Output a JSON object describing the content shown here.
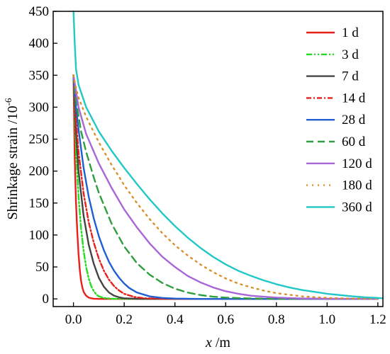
{
  "chart_data": {
    "type": "line",
    "title": "",
    "xlabel_var": "x",
    "xlabel_unit": " /m",
    "ylabel_main": "Shrinkage strain /10",
    "ylabel_exp": "-6",
    "xlim": [
      -0.08,
      1.22
    ],
    "ylim": [
      -12,
      450
    ],
    "xticks": [
      "0.0",
      "0.2",
      "0.4",
      "0.6",
      "0.8",
      "1.0",
      "1.2"
    ],
    "xtick_values": [
      0.0,
      0.2,
      0.4,
      0.6,
      0.8,
      1.0,
      1.2
    ],
    "yticks": [
      "0",
      "50",
      "100",
      "150",
      "200",
      "250",
      "300",
      "350",
      "400",
      "450"
    ],
    "ytick_values": [
      0,
      50,
      100,
      150,
      200,
      250,
      300,
      350,
      400,
      450
    ],
    "legend_position": "top-right",
    "series": [
      {
        "name": "1 d",
        "color": "#e8201c",
        "dash": "",
        "points": [
          [
            0,
            350
          ],
          [
            0.005,
            220
          ],
          [
            0.01,
            150
          ],
          [
            0.015,
            105
          ],
          [
            0.02,
            70
          ],
          [
            0.025,
            45
          ],
          [
            0.03,
            28
          ],
          [
            0.035,
            18
          ],
          [
            0.04,
            11
          ],
          [
            0.05,
            5
          ],
          [
            0.06,
            2
          ],
          [
            0.07,
            1
          ],
          [
            0.08,
            0.3
          ],
          [
            0.1,
            0
          ],
          [
            1.2,
            0
          ]
        ]
      },
      {
        "name": "3 d",
        "color": "#22dd22",
        "dash": "8,3,2,3,2,3",
        "points": [
          [
            0,
            350
          ],
          [
            0.01,
            230
          ],
          [
            0.02,
            160
          ],
          [
            0.03,
            110
          ],
          [
            0.04,
            75
          ],
          [
            0.05,
            50
          ],
          [
            0.06,
            32
          ],
          [
            0.07,
            20
          ],
          [
            0.08,
            12
          ],
          [
            0.09,
            7
          ],
          [
            0.1,
            4
          ],
          [
            0.12,
            1.5
          ],
          [
            0.15,
            0.3
          ],
          [
            0.2,
            0
          ],
          [
            1.2,
            0
          ]
        ]
      },
      {
        "name": "7 d",
        "color": "#444444",
        "dash": "",
        "points": [
          [
            0,
            350
          ],
          [
            0.01,
            260
          ],
          [
            0.02,
            200
          ],
          [
            0.04,
            130
          ],
          [
            0.06,
            85
          ],
          [
            0.08,
            55
          ],
          [
            0.1,
            33
          ],
          [
            0.12,
            19
          ],
          [
            0.14,
            10
          ],
          [
            0.16,
            5
          ],
          [
            0.18,
            2.5
          ],
          [
            0.2,
            1
          ],
          [
            0.25,
            0.2
          ],
          [
            0.3,
            0
          ],
          [
            1.2,
            0
          ]
        ]
      },
      {
        "name": "14 d",
        "color": "#e8201c",
        "dash": "7,3,2,3",
        "points": [
          [
            0,
            350
          ],
          [
            0.01,
            280
          ],
          [
            0.02,
            230
          ],
          [
            0.04,
            165
          ],
          [
            0.06,
            120
          ],
          [
            0.08,
            88
          ],
          [
            0.1,
            63
          ],
          [
            0.12,
            44
          ],
          [
            0.14,
            30
          ],
          [
            0.16,
            20
          ],
          [
            0.18,
            13
          ],
          [
            0.2,
            8
          ],
          [
            0.24,
            3
          ],
          [
            0.28,
            1
          ],
          [
            0.35,
            0.2
          ],
          [
            0.4,
            0
          ],
          [
            1.2,
            0
          ]
        ]
      },
      {
        "name": "28 d",
        "color": "#1f5fd1",
        "dash": "",
        "points": [
          [
            0,
            350
          ],
          [
            0.01,
            300
          ],
          [
            0.02,
            265
          ],
          [
            0.04,
            205
          ],
          [
            0.06,
            160
          ],
          [
            0.08,
            126
          ],
          [
            0.1,
            98
          ],
          [
            0.12,
            76
          ],
          [
            0.14,
            58
          ],
          [
            0.16,
            44
          ],
          [
            0.18,
            33
          ],
          [
            0.2,
            24
          ],
          [
            0.22,
            17
          ],
          [
            0.25,
            10
          ],
          [
            0.3,
            4
          ],
          [
            0.35,
            1.5
          ],
          [
            0.4,
            0.5
          ],
          [
            0.5,
            0
          ],
          [
            1.2,
            0
          ]
        ]
      },
      {
        "name": "60 d",
        "color": "#2e9e3e",
        "dash": "10,6",
        "points": [
          [
            0,
            350
          ],
          [
            0.01,
            310
          ],
          [
            0.03,
            262
          ],
          [
            0.05,
            230
          ],
          [
            0.08,
            190
          ],
          [
            0.1,
            166
          ],
          [
            0.15,
            118
          ],
          [
            0.2,
            82
          ],
          [
            0.25,
            56
          ],
          [
            0.3,
            38
          ],
          [
            0.35,
            25
          ],
          [
            0.4,
            16
          ],
          [
            0.45,
            10
          ],
          [
            0.5,
            6
          ],
          [
            0.55,
            3.5
          ],
          [
            0.6,
            2
          ],
          [
            0.7,
            0.7
          ],
          [
            0.8,
            0.2
          ],
          [
            1.2,
            0
          ]
        ]
      },
      {
        "name": "120 d",
        "color": "#a866d8",
        "dash": "",
        "points": [
          [
            0,
            350
          ],
          [
            0.01,
            325
          ],
          [
            0.02,
            300
          ],
          [
            0.05,
            258
          ],
          [
            0.1,
            212
          ],
          [
            0.15,
            174
          ],
          [
            0.2,
            140
          ],
          [
            0.25,
            112
          ],
          [
            0.3,
            87
          ],
          [
            0.35,
            66
          ],
          [
            0.4,
            50
          ],
          [
            0.45,
            36
          ],
          [
            0.5,
            26
          ],
          [
            0.55,
            18
          ],
          [
            0.6,
            12
          ],
          [
            0.65,
            8
          ],
          [
            0.7,
            5
          ],
          [
            0.8,
            2
          ],
          [
            0.9,
            0.7
          ],
          [
            1.0,
            0.2
          ],
          [
            1.2,
            0
          ]
        ]
      },
      {
        "name": "180 d",
        "color": "#d9902a",
        "dash": "2,6",
        "points": [
          [
            0,
            350
          ],
          [
            0.01,
            330
          ],
          [
            0.02,
            315
          ],
          [
            0.05,
            285
          ],
          [
            0.1,
            245
          ],
          [
            0.15,
            210
          ],
          [
            0.2,
            178
          ],
          [
            0.25,
            150
          ],
          [
            0.3,
            125
          ],
          [
            0.35,
            103
          ],
          [
            0.4,
            84
          ],
          [
            0.45,
            68
          ],
          [
            0.5,
            54
          ],
          [
            0.55,
            42
          ],
          [
            0.6,
            32
          ],
          [
            0.65,
            24
          ],
          [
            0.7,
            18
          ],
          [
            0.75,
            13
          ],
          [
            0.8,
            9
          ],
          [
            0.9,
            4
          ],
          [
            1.0,
            1.5
          ],
          [
            1.1,
            0.5
          ],
          [
            1.2,
            0.2
          ]
        ]
      },
      {
        "name": "360 d",
        "color": "#22c8c8",
        "dash": "",
        "points": [
          [
            0,
            450
          ],
          [
            0.005,
            400
          ],
          [
            0.01,
            360
          ],
          [
            0.02,
            335
          ],
          [
            0.05,
            300
          ],
          [
            0.1,
            262
          ],
          [
            0.15,
            232
          ],
          [
            0.2,
            205
          ],
          [
            0.25,
            180
          ],
          [
            0.3,
            156
          ],
          [
            0.35,
            134
          ],
          [
            0.4,
            114
          ],
          [
            0.45,
            96
          ],
          [
            0.5,
            80
          ],
          [
            0.55,
            66
          ],
          [
            0.6,
            54
          ],
          [
            0.65,
            44
          ],
          [
            0.7,
            36
          ],
          [
            0.75,
            29
          ],
          [
            0.8,
            23
          ],
          [
            0.85,
            18
          ],
          [
            0.9,
            14
          ],
          [
            0.95,
            11
          ],
          [
            1.0,
            8
          ],
          [
            1.05,
            6
          ],
          [
            1.1,
            4
          ],
          [
            1.15,
            2.5
          ],
          [
            1.2,
            1.5
          ],
          [
            1.22,
            1
          ]
        ]
      }
    ]
  }
}
